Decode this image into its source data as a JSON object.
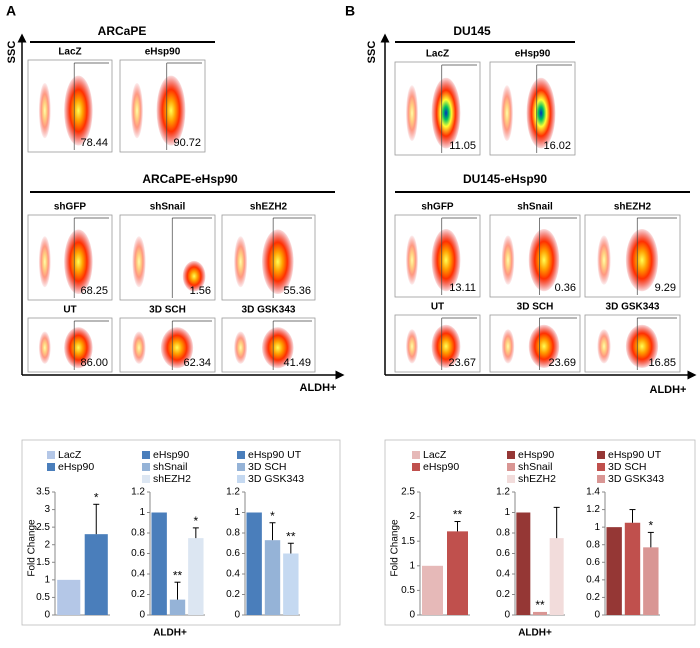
{
  "panels": [
    {
      "letter": "A",
      "y_axis": "SSC",
      "x_axis": "ALDH+",
      "title": "ARCaPE",
      "top_plots": [
        {
          "label": "LacZ",
          "value": "78.44"
        },
        {
          "label": "eHsp90",
          "value": "90.72"
        }
      ],
      "subtitle": "ARCaPE-eHsp90",
      "rows": [
        [
          {
            "label": "shGFP",
            "value": "68.25"
          },
          {
            "label": "shSnail",
            "value": "1.56"
          },
          {
            "label": "shEZH2",
            "value": "55.36"
          }
        ],
        [
          {
            "label": "UT",
            "value": "86.00"
          },
          {
            "label": "3D SCH",
            "value": "62.34"
          },
          {
            "label": "3D GSK343",
            "value": "41.49"
          }
        ]
      ],
      "bar_ylabel": "Fold Change",
      "bar_xlabel": "ALDH+"
    },
    {
      "letter": "B",
      "y_axis": "SSC",
      "x_axis": "ALDH+",
      "title": "DU145",
      "top_plots": [
        {
          "label": "LacZ",
          "value": "11.05"
        },
        {
          "label": "eHsp90",
          "value": "16.02"
        }
      ],
      "subtitle": "DU145-eHsp90",
      "rows": [
        [
          {
            "label": "shGFP",
            "value": "13.11"
          },
          {
            "label": "shSnail",
            "value": "0.36"
          },
          {
            "label": "shEZH2",
            "value": "9.29"
          }
        ],
        [
          {
            "label": "UT",
            "value": "23.67"
          },
          {
            "label": "3D SCH",
            "value": "23.69"
          },
          {
            "label": "3D GSK343",
            "value": "16.85"
          }
        ]
      ],
      "bar_ylabel": "Fold Change",
      "bar_xlabel": "ALDH+"
    }
  ],
  "chart_data": [
    {
      "type": "bar",
      "ylim": [
        0,
        3.5
      ],
      "yticks": [
        0,
        0.5,
        1,
        1.5,
        2,
        2.5,
        3,
        3.5
      ],
      "series": [
        {
          "name": "LacZ",
          "color": "#b4c7e7",
          "values": [
            1
          ]
        },
        {
          "name": "eHsp90",
          "color": "#4a7ebb",
          "values": [
            2.3
          ],
          "errors": [
            0.85
          ],
          "label": "*"
        }
      ]
    },
    {
      "type": "bar",
      "ylim": [
        0,
        1.2
      ],
      "yticks": [
        0,
        0.2,
        0.4,
        0.6,
        0.8,
        1,
        1.2
      ],
      "series": [
        {
          "name": "eHsp90",
          "color": "#4a7ebb",
          "values": [
            1
          ]
        },
        {
          "name": "shSnail",
          "color": "#95b3d7",
          "values": [
            0.15
          ],
          "errors": [
            0.17
          ],
          "label": "**"
        },
        {
          "name": "shEZH2",
          "color": "#dce6f2",
          "values": [
            0.75
          ],
          "errors": [
            0.1
          ],
          "label": "*"
        }
      ]
    },
    {
      "type": "bar",
      "ylim": [
        0,
        1.2
      ],
      "yticks": [
        0,
        0.2,
        0.4,
        0.6,
        0.8,
        1,
        1.2
      ],
      "series": [
        {
          "name": "eHsp90 UT",
          "color": "#4a7ebb",
          "values": [
            1
          ]
        },
        {
          "name": "3D SCH",
          "color": "#95b3d7",
          "values": [
            0.73
          ],
          "errors": [
            0.17
          ],
          "label": "*"
        },
        {
          "name": "3D GSK343",
          "color": "#c5d9f1",
          "values": [
            0.6
          ],
          "errors": [
            0.1
          ],
          "label": "**"
        }
      ]
    },
    {
      "type": "bar",
      "ylim": [
        0,
        2.5
      ],
      "yticks": [
        0,
        0.5,
        1,
        1.5,
        2,
        2.5
      ],
      "series": [
        {
          "name": "LacZ",
          "color": "#e6b9b8",
          "values": [
            1
          ]
        },
        {
          "name": "eHsp90",
          "color": "#c0504d",
          "values": [
            1.7
          ],
          "errors": [
            0.2
          ],
          "label": "**"
        }
      ]
    },
    {
      "type": "bar",
      "ylim": [
        0,
        1.2
      ],
      "yticks": [
        0,
        0.2,
        0.4,
        0.6,
        0.8,
        1,
        1.2
      ],
      "series": [
        {
          "name": "eHsp90",
          "color": "#953735",
          "values": [
            1
          ]
        },
        {
          "name": "shSnail",
          "color": "#d99694",
          "values": [
            0.03
          ],
          "label": "**"
        },
        {
          "name": "shEZH2",
          "color": "#f2dcdb",
          "values": [
            0.75
          ],
          "errors": [
            0.3
          ]
        }
      ]
    },
    {
      "type": "bar",
      "ylim": [
        0,
        1.4
      ],
      "yticks": [
        0,
        0.2,
        0.4,
        0.6,
        0.8,
        1,
        1.2,
        1.4
      ],
      "series": [
        {
          "name": "eHsp90 UT",
          "color": "#953735",
          "values": [
            1
          ]
        },
        {
          "name": "3D SCH",
          "color": "#c0504d",
          "values": [
            1.05
          ],
          "errors": [
            0.15
          ]
        },
        {
          "name": "3D GSK343",
          "color": "#d99694",
          "values": [
            0.77
          ],
          "errors": [
            0.17
          ],
          "label": "*"
        }
      ]
    }
  ]
}
